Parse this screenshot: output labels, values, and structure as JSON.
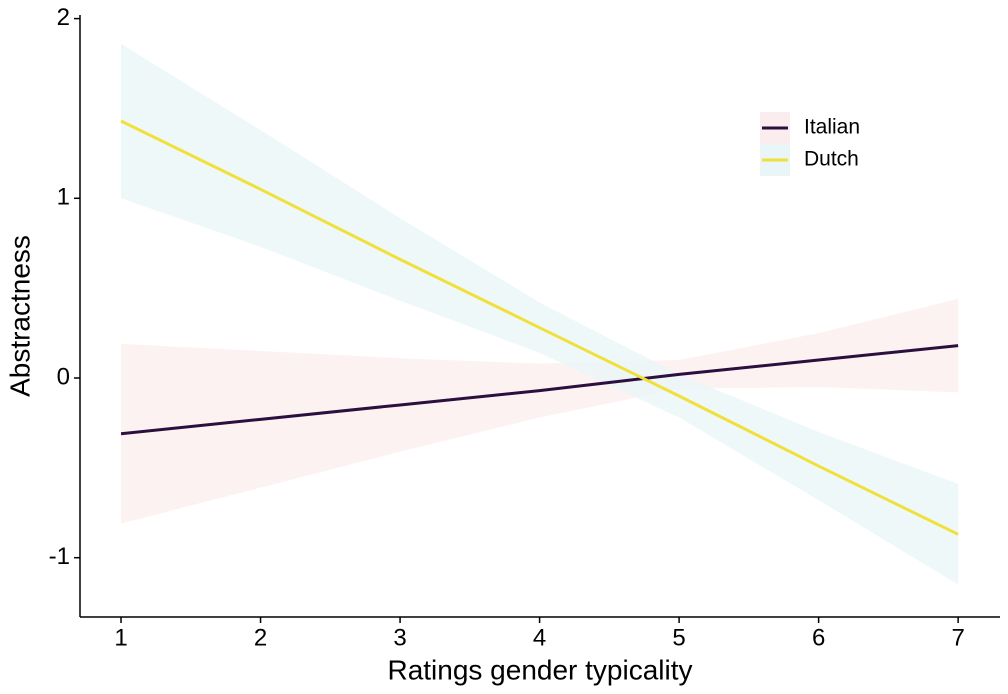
{
  "chart_data": {
    "type": "line",
    "xlabel": "Ratings gender typicality",
    "ylabel": "Abstractness",
    "x": [
      1,
      2,
      3,
      4,
      5,
      6,
      7
    ],
    "xlim": [
      0.706,
      7.3
    ],
    "xticks": [
      1,
      2,
      3,
      4,
      5,
      6,
      7
    ],
    "ylim": [
      -1.33,
      2.02
    ],
    "yticks": [
      -1,
      0,
      1,
      2
    ],
    "grid": false,
    "legend": "top-right",
    "series": [
      {
        "name": "Italian",
        "color": "#2b0f3f",
        "band_color": "#fbeded",
        "values": [
          -0.31,
          -0.23,
          -0.15,
          -0.07,
          0.02,
          0.1,
          0.18
        ],
        "upper": [
          0.19,
          0.15,
          0.11,
          0.08,
          0.1,
          0.25,
          0.44
        ],
        "lower": [
          -0.81,
          -0.61,
          -0.41,
          -0.22,
          -0.06,
          -0.05,
          -0.08
        ]
      },
      {
        "name": "Dutch",
        "color": "#f0e03c",
        "band_color": "#e9f5f7",
        "values": [
          1.43,
          1.05,
          0.66,
          0.28,
          -0.1,
          -0.49,
          -0.87
        ],
        "upper": [
          1.86,
          1.38,
          0.89,
          0.42,
          0.02,
          -0.3,
          -0.59
        ],
        "lower": [
          1.0,
          0.73,
          0.43,
          0.14,
          -0.22,
          -0.68,
          -1.15
        ]
      }
    ]
  }
}
